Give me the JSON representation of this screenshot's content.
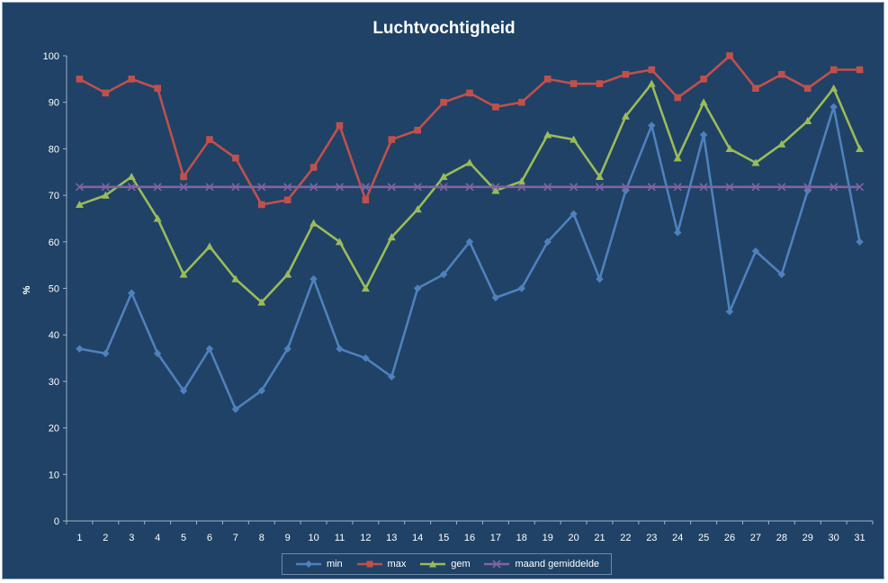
{
  "chart_data": {
    "type": "line",
    "title": "Luchtvochtigheid",
    "ylabel": "%",
    "xlabel": "",
    "ylim": [
      0,
      100
    ],
    "yticks": [
      0,
      10,
      20,
      30,
      40,
      50,
      60,
      70,
      80,
      90,
      100
    ],
    "categories": [
      "1",
      "2",
      "3",
      "4",
      "5",
      "6",
      "7",
      "8",
      "9",
      "10",
      "11",
      "12",
      "13",
      "14",
      "15",
      "16",
      "17",
      "18",
      "19",
      "20",
      "21",
      "22",
      "23",
      "24",
      "25",
      "26",
      "27",
      "28",
      "29",
      "30",
      "31"
    ],
    "grid": false,
    "legend_position": "bottom",
    "series": [
      {
        "name": "min",
        "color": "#4f81bd",
        "marker": "diamond",
        "values": [
          37,
          36,
          49,
          36,
          28,
          37,
          24,
          28,
          37,
          52,
          37,
          35,
          31,
          50,
          53,
          60,
          48,
          50,
          60,
          66,
          52,
          71,
          85,
          62,
          83,
          45,
          58,
          53,
          71,
          89,
          60
        ]
      },
      {
        "name": "max",
        "color": "#c0504d",
        "marker": "square",
        "values": [
          95,
          92,
          95,
          93,
          74,
          82,
          78,
          68,
          69,
          76,
          85,
          69,
          82,
          84,
          90,
          92,
          89,
          90,
          95,
          94,
          94,
          96,
          97,
          91,
          95,
          100,
          93,
          96,
          93,
          97,
          97
        ]
      },
      {
        "name": "gem",
        "color": "#9bbb59",
        "marker": "triangle",
        "values": [
          68,
          70,
          74,
          65,
          53,
          59,
          52,
          47,
          53,
          64,
          60,
          50,
          61,
          67,
          74,
          77,
          71,
          73,
          83,
          82,
          74,
          87,
          94,
          78,
          90,
          80,
          77,
          81,
          86,
          93,
          80
        ]
      },
      {
        "name": "maand gemiddelde",
        "color": "#8064a2",
        "marker": "x",
        "values": [
          71.8,
          71.8,
          71.8,
          71.8,
          71.8,
          71.8,
          71.8,
          71.8,
          71.8,
          71.8,
          71.8,
          71.8,
          71.8,
          71.8,
          71.8,
          71.8,
          71.8,
          71.8,
          71.8,
          71.8,
          71.8,
          71.8,
          71.8,
          71.8,
          71.8,
          71.8,
          71.8,
          71.8,
          71.8,
          71.8,
          71.8
        ]
      }
    ]
  }
}
